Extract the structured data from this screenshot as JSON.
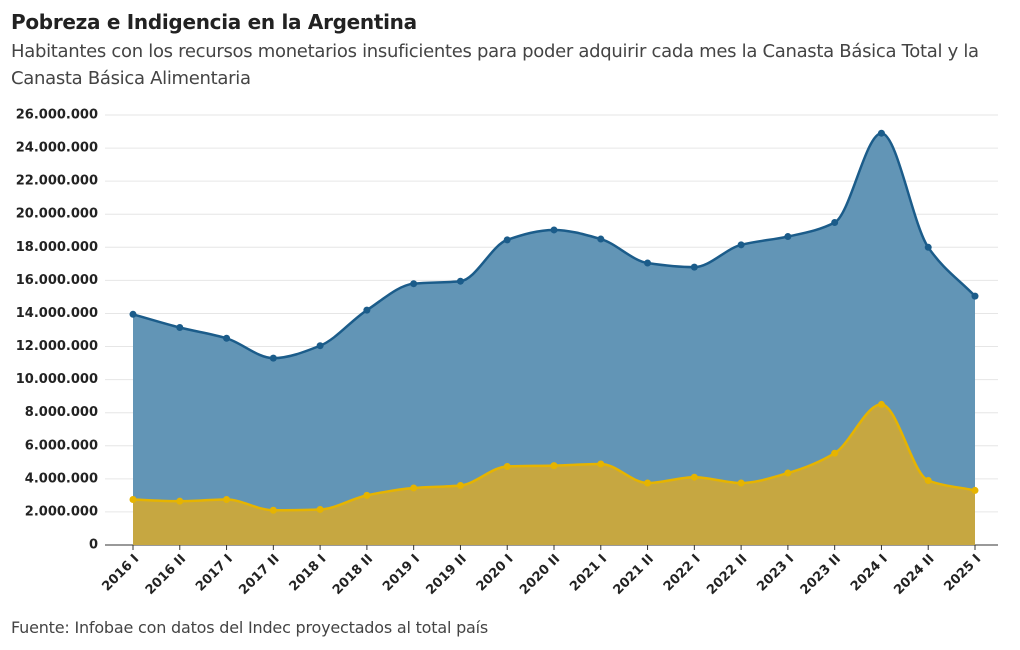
{
  "chart_data": {
    "type": "area",
    "title": "Pobreza e Indigencia en la Argentina",
    "subtitle": "Habitantes con los recursos monetarios insuficientes para poder adquirir cada mes la Canasta Básica Total y la Canasta Básica Alimentaria",
    "source": "Fuente: Infobae con datos del Indec proyectados al total país",
    "categories": [
      "2016 I",
      "2016 II",
      "2017 I",
      "2017 II",
      "2018 I",
      "2018 II",
      "2019 I",
      "2019 II",
      "2020 I",
      "2020 II",
      "2021 I",
      "2021 II",
      "2022 I",
      "2022 II",
      "2023 I",
      "2023 II",
      "2024 I",
      "2024 II",
      "2025 I"
    ],
    "series": [
      {
        "color": "#1b5c8a",
        "fill": "#5f93b5",
        "values": [
          13950000,
          13150000,
          12500000,
          11300000,
          12050000,
          14200000,
          15800000,
          15950000,
          18450000,
          19050000,
          18500000,
          17050000,
          16800000,
          18150000,
          18650000,
          19500000,
          24900000,
          18000000,
          15050000
        ]
      },
      {
        "color": "#e6b400",
        "fill": "#c8a73e",
        "values": [
          2750000,
          2650000,
          2750000,
          2100000,
          2150000,
          3000000,
          3450000,
          3600000,
          4750000,
          4800000,
          4900000,
          3750000,
          4100000,
          3750000,
          4350000,
          5550000,
          8500000,
          3900000,
          3300000
        ]
      }
    ],
    "ylim": [
      0,
      26000000
    ],
    "yticks": [
      0,
      {
        "value": 2000000,
        "label": "2.000.000"
      },
      {
        "value": 4000000,
        "label": "4.000.000"
      },
      {
        "value": 6000000,
        "label": "6.000.000"
      },
      {
        "value": 8000000,
        "label": "8.000.000"
      },
      {
        "value": 10000000,
        "label": "10.000.000"
      },
      {
        "value": 12000000,
        "label": "12.000.000"
      },
      {
        "value": 14000000,
        "label": "14.000.000"
      },
      {
        "value": 16000000,
        "label": "16.000.000"
      },
      {
        "value": 18000000,
        "label": "18.000.000"
      },
      {
        "value": 20000000,
        "label": "20.000.000"
      },
      {
        "value": 22000000,
        "label": "22.000.000"
      },
      {
        "value": 24000000,
        "label": "24.000.000"
      },
      {
        "value": 26000000,
        "label": "26.000.000"
      }
    ],
    "grid": true
  }
}
